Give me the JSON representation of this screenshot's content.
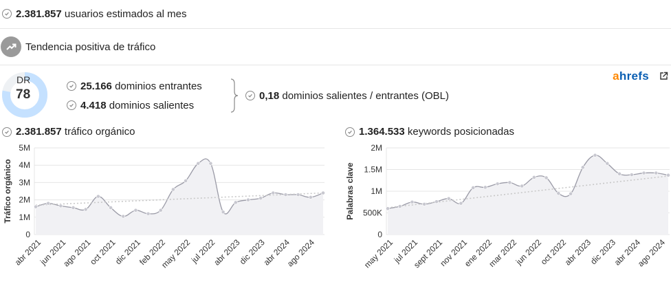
{
  "summary": {
    "users_value": "2.381.857",
    "users_label": "usuarios estimados al mes",
    "trend_label": "Tendencia positiva de tráfico"
  },
  "domain_rating": {
    "label": "DR",
    "value": "78",
    "fraction": 0.78
  },
  "links": {
    "incoming_value": "25.166",
    "incoming_label": "dominios entrantes",
    "outgoing_value": "4.418",
    "outgoing_label": "dominios salientes",
    "obl_value": "0,18",
    "obl_label": "dominios salientes / entrantes (OBL)"
  },
  "brand": {
    "a": "a",
    "rest": "hrefs",
    "external_icon": "external-link-icon"
  },
  "colors": {
    "ring": "#c5e1ff",
    "ring_bg": "#eef1f4",
    "line": "#9a9aa6",
    "fill": "#f1f1f4",
    "trend": "#c8c8c8",
    "brand_orange": "#ff8800",
    "brand_blue": "#0b5fb3"
  },
  "traffic_header": {
    "value": "2.381.857",
    "label": "tráfico orgánico"
  },
  "keywords_header": {
    "value": "1.364.533",
    "label": "keywords posicionadas"
  },
  "chart_data": [
    {
      "type": "area",
      "ylabel": "Tráfico orgánico",
      "yticks": [
        "0",
        "1M",
        "2M",
        "3M",
        "4M",
        "5M"
      ],
      "ylim": [
        0,
        5000000
      ],
      "xtick_labels": [
        "abr 2021",
        "jun 2021",
        "ago 2021",
        "oct 2021",
        "dic 2021",
        "feb 2022",
        "may 2022",
        "jul 2022",
        "abr 2023",
        "dic 2023",
        "abr 2024",
        "ago 2024"
      ],
      "values": [
        1600000,
        1800000,
        1650000,
        1550000,
        1450000,
        2200000,
        1550000,
        1050000,
        1400000,
        1200000,
        1400000,
        2600000,
        3100000,
        4100000,
        4100000,
        1300000,
        1850000,
        2000000,
        2100000,
        2400000,
        2300000,
        2300000,
        2150000,
        2400000
      ],
      "trend": [
        1700000,
        2400000
      ],
      "grid": true
    },
    {
      "type": "area",
      "ylabel": "Palabras clave",
      "yticks": [
        "0",
        "500K",
        "1M",
        "1.5M",
        "2M"
      ],
      "ylim": [
        0,
        2000000
      ],
      "xtick_labels": [
        "may 2021",
        "jul 2021",
        "sept 2021",
        "nov 2021",
        "ene 2022",
        "mar 2022",
        "jun 2022",
        "oct 2022",
        "abr 2023",
        "dic 2023",
        "abr 2024",
        "ago 2024"
      ],
      "values": [
        600000,
        650000,
        750000,
        700000,
        760000,
        830000,
        720000,
        1080000,
        1090000,
        1170000,
        1200000,
        1120000,
        1320000,
        1310000,
        950000,
        940000,
        1550000,
        1830000,
        1640000,
        1400000,
        1380000,
        1420000,
        1420000,
        1370000
      ],
      "trend": [
        620000,
        1350000
      ],
      "grid": true
    }
  ]
}
